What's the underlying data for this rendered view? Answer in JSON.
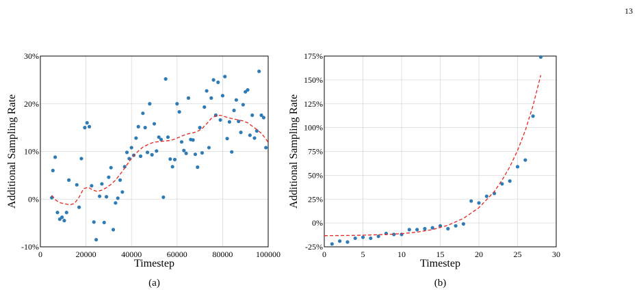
{
  "page_number": "13",
  "chart_data": [
    {
      "type": "scatter",
      "panel_label": "(a)",
      "xlabel": "Timestep",
      "ylabel": "Additional Sampling Rate",
      "xlim": [
        0,
        100000
      ],
      "ylim": [
        -10,
        30
      ],
      "xticks": [
        0,
        20000,
        40000,
        60000,
        80000,
        100000
      ],
      "xtick_labels": [
        "0",
        "20000",
        "40000",
        "60000",
        "80000",
        "100000"
      ],
      "yticks": [
        -10,
        0,
        10,
        20,
        30
      ],
      "ytick_labels": [
        "-10%",
        "0%",
        "10%",
        "20%",
        "30%"
      ],
      "grid": true,
      "colors": {
        "points": "#2f7bb6",
        "trend": "#e8251d"
      },
      "series": [
        {
          "style": "points",
          "points": [
            [
              5000,
              0.3
            ],
            [
              5500,
              6
            ],
            [
              6500,
              8.8
            ],
            [
              7500,
              -2.8
            ],
            [
              8500,
              -4.2
            ],
            [
              9500,
              -3.8
            ],
            [
              10500,
              -4.5
            ],
            [
              11500,
              -2.8
            ],
            [
              12500,
              4
            ],
            [
              16000,
              3
            ],
            [
              17000,
              -1.7
            ],
            [
              18000,
              8.5
            ],
            [
              19500,
              15
            ],
            [
              20500,
              16
            ],
            [
              21500,
              15.2
            ],
            [
              22500,
              2.8
            ],
            [
              23500,
              -4.8
            ],
            [
              24500,
              -8.5
            ],
            [
              26000,
              0.6
            ],
            [
              27000,
              3.2
            ],
            [
              28000,
              -4.9
            ],
            [
              29000,
              0.5
            ],
            [
              30000,
              4.6
            ],
            [
              31000,
              6.6
            ],
            [
              32000,
              -6.4
            ],
            [
              33000,
              -0.8
            ],
            [
              34000,
              0.2
            ],
            [
              35000,
              4
            ],
            [
              36000,
              1.5
            ],
            [
              37000,
              6.8
            ],
            [
              38000,
              9.8
            ],
            [
              39000,
              8.5
            ],
            [
              40000,
              10.8
            ],
            [
              41000,
              9.2
            ],
            [
              42000,
              12.8
            ],
            [
              43000,
              15.2
            ],
            [
              44000,
              9
            ],
            [
              45000,
              18
            ],
            [
              46000,
              15
            ],
            [
              47000,
              9.8
            ],
            [
              48000,
              20
            ],
            [
              49000,
              9.3
            ],
            [
              50000,
              15.8
            ],
            [
              51000,
              10.1
            ],
            [
              52000,
              13
            ],
            [
              53000,
              12.5
            ],
            [
              54000,
              0.4
            ],
            [
              55000,
              25.2
            ],
            [
              56000,
              13
            ],
            [
              57000,
              8.4
            ],
            [
              58000,
              6.8
            ],
            [
              59000,
              8.3
            ],
            [
              60000,
              20
            ],
            [
              61000,
              18.3
            ],
            [
              62000,
              12
            ],
            [
              63000,
              10.2
            ],
            [
              64000,
              9.6
            ],
            [
              65000,
              21.2
            ],
            [
              66000,
              12.5
            ],
            [
              67000,
              12.4
            ],
            [
              68000,
              9.4
            ],
            [
              69000,
              6.7
            ],
            [
              70000,
              15
            ],
            [
              71000,
              9.7
            ],
            [
              72000,
              19.3
            ],
            [
              73000,
              22.7
            ],
            [
              74000,
              10.8
            ],
            [
              75000,
              21.2
            ],
            [
              76000,
              25
            ],
            [
              77000,
              17.6
            ],
            [
              78000,
              24.5
            ],
            [
              79000,
              16.6
            ],
            [
              80000,
              21.7
            ],
            [
              81000,
              25.7
            ],
            [
              82000,
              12.7
            ],
            [
              83000,
              16.2
            ],
            [
              84000,
              9.9
            ],
            [
              85000,
              18.6
            ],
            [
              86000,
              20.8
            ],
            [
              87000,
              16.3
            ],
            [
              88000,
              14
            ],
            [
              89000,
              19.8
            ],
            [
              90000,
              22.5
            ],
            [
              91000,
              22.9
            ],
            [
              92000,
              13.4
            ],
            [
              93000,
              17.6
            ],
            [
              94000,
              12.8
            ],
            [
              95000,
              14.3
            ],
            [
              96000,
              26.8
            ],
            [
              97000,
              17.6
            ],
            [
              98000,
              17.1
            ],
            [
              99000,
              10.8
            ]
          ]
        },
        {
          "style": "dashed-line",
          "points": [
            [
              5000,
              0.8
            ],
            [
              7000,
              -0.3
            ],
            [
              9000,
              -0.8
            ],
            [
              11000,
              -1
            ],
            [
              13000,
              -1.2
            ],
            [
              15000,
              -0.9
            ],
            [
              17000,
              0.4
            ],
            [
              19000,
              2.2
            ],
            [
              21000,
              2.5
            ],
            [
              23000,
              1.9
            ],
            [
              25000,
              1.6
            ],
            [
              27000,
              1.9
            ],
            [
              29000,
              2.4
            ],
            [
              31000,
              3.1
            ],
            [
              33000,
              4
            ],
            [
              35000,
              5.2
            ],
            [
              37000,
              6.5
            ],
            [
              39000,
              7.9
            ],
            [
              41000,
              9.1
            ],
            [
              43000,
              10.1
            ],
            [
              45000,
              10.9
            ],
            [
              47000,
              11.4
            ],
            [
              49000,
              11.8
            ],
            [
              51000,
              12
            ],
            [
              53000,
              12.1
            ],
            [
              55000,
              12.2
            ],
            [
              57000,
              12.3
            ],
            [
              59000,
              12.6
            ],
            [
              61000,
              13
            ],
            [
              63000,
              13.4
            ],
            [
              65000,
              13.7
            ],
            [
              67000,
              13.9
            ],
            [
              69000,
              14.2
            ],
            [
              71000,
              14.8
            ],
            [
              73000,
              15.8
            ],
            [
              75000,
              16.9
            ],
            [
              77000,
              17.5
            ],
            [
              79000,
              17.6
            ],
            [
              81000,
              17.3
            ],
            [
              83000,
              17
            ],
            [
              85000,
              16.8
            ],
            [
              87000,
              16.6
            ],
            [
              89000,
              16.4
            ],
            [
              91000,
              16
            ],
            [
              93000,
              15.3
            ],
            [
              95000,
              14.6
            ],
            [
              97000,
              13.8
            ],
            [
              99000,
              12.6
            ],
            [
              100000,
              11.9
            ]
          ]
        }
      ]
    },
    {
      "type": "scatter",
      "panel_label": "(b)",
      "xlabel": "Timestep",
      "ylabel": "Additional Sampling Rate",
      "xlim": [
        0,
        30
      ],
      "ylim": [
        -25,
        175
      ],
      "xticks": [
        0,
        5,
        10,
        15,
        20,
        25,
        30
      ],
      "xtick_labels": [
        "0",
        "5",
        "10",
        "15",
        "20",
        "25",
        "30"
      ],
      "yticks": [
        -25,
        0,
        25,
        50,
        75,
        100,
        125,
        150,
        175
      ],
      "ytick_labels": [
        "-25%",
        "0%",
        "25%",
        "50%",
        "75%",
        "100%",
        "125%",
        "150%",
        "175%"
      ],
      "grid": true,
      "colors": {
        "points": "#2f7bb6",
        "trend": "#e8251d"
      },
      "series": [
        {
          "style": "points",
          "points": [
            [
              1,
              -22
            ],
            [
              2,
              -19
            ],
            [
              3,
              -20
            ],
            [
              4,
              -16
            ],
            [
              5,
              -15
            ],
            [
              6,
              -16
            ],
            [
              7,
              -14
            ],
            [
              8,
              -11
            ],
            [
              9,
              -12
            ],
            [
              10,
              -12
            ],
            [
              11,
              -7
            ],
            [
              12,
              -7
            ],
            [
              13,
              -6
            ],
            [
              14,
              -5
            ],
            [
              15,
              -3
            ],
            [
              16,
              -6
            ],
            [
              17,
              -3
            ],
            [
              18,
              -1
            ],
            [
              19,
              23
            ],
            [
              20,
              21
            ],
            [
              21,
              28
            ],
            [
              22,
              31
            ],
            [
              23,
              41
            ],
            [
              24,
              44
            ],
            [
              25,
              59
            ],
            [
              26,
              66
            ],
            [
              27,
              112
            ],
            [
              28,
              174
            ]
          ]
        },
        {
          "style": "dashed-line",
          "points": [
            [
              0,
              -13.3
            ],
            [
              2,
              -13.2
            ],
            [
              4,
              -13
            ],
            [
              6,
              -12.6
            ],
            [
              8,
              -12
            ],
            [
              10,
              -11.2
            ],
            [
              12,
              -9.6
            ],
            [
              14,
              -6.9
            ],
            [
              16,
              -2.4
            ],
            [
              18,
              4.8
            ],
            [
              20,
              16
            ],
            [
              22,
              33
            ],
            [
              23,
              45
            ],
            [
              24,
              59
            ],
            [
              25,
              76
            ],
            [
              26,
              97
            ],
            [
              27,
              123
            ],
            [
              28,
              155
            ]
          ]
        }
      ]
    }
  ]
}
